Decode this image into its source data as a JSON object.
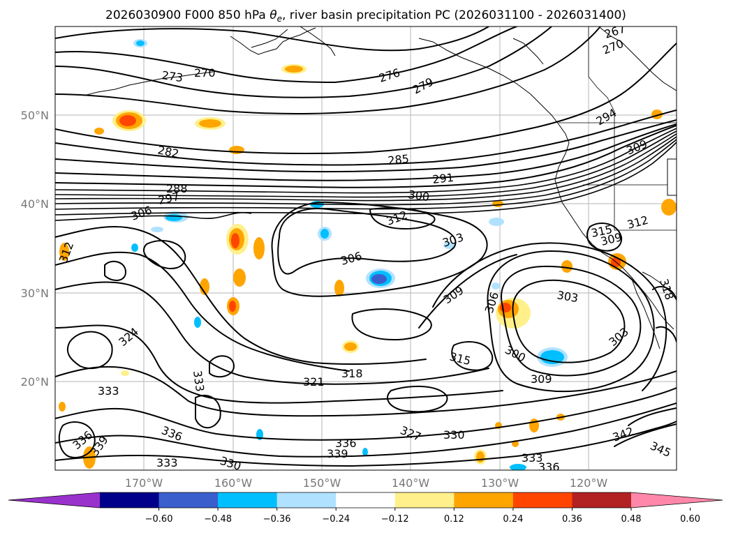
{
  "title": "2026030900 F000 850 hPa θe, river basin precipitation PC (2026031100 - 2026031400)",
  "title_parts": {
    "prefix": "2026030900 F000 850 hPa ",
    "theta": "θ",
    "sub": "e",
    "suffix": ", river basin precipitation PC (2026031100 - 2026031400)"
  },
  "map": {
    "lon_labels": [
      "170°W",
      "160°W",
      "150°W",
      "140°W",
      "130°W",
      "120°W"
    ],
    "lat_labels": [
      "50°N",
      "40°N",
      "30°N",
      "20°N"
    ],
    "contour_labels": [
      "273",
      "270",
      "276",
      "279",
      "267",
      "270",
      "282",
      "285",
      "291",
      "288",
      "297",
      "300",
      "306",
      "312",
      "303",
      "312",
      "315",
      "309",
      "306",
      "309",
      "303",
      "306",
      "300",
      "303",
      "309",
      "294",
      "309",
      "315",
      "318",
      "321",
      "324",
      "327",
      "330",
      "333",
      "333",
      "336",
      "336",
      "339",
      "330",
      "333",
      "336",
      "339",
      "342",
      "345",
      "333",
      "336",
      "318",
      "312"
    ],
    "variable": "850 hPa theta-e contours with precipitation PC shading"
  },
  "colorbar": {
    "ticks": [
      "−0.60",
      "−0.48",
      "−0.36",
      "−0.24",
      "−0.12",
      "0.12",
      "0.24",
      "0.36",
      "0.48",
      "0.60"
    ],
    "colors": [
      "#9932cc",
      "#00008b",
      "#3a5fcd",
      "#00bfff",
      "#b0e2ff",
      "#ffffff",
      "#fff08c",
      "#ffa500",
      "#ff4500",
      "#b22222",
      "#ff88aa"
    ],
    "extend": "both"
  },
  "colors": {
    "orange": "#ffa500",
    "red": "#ff4500",
    "yellow": "#fff08c",
    "lightblue": "#b0e2ff",
    "blue": "#00bfff",
    "darkblue": "#3a5fcd"
  }
}
